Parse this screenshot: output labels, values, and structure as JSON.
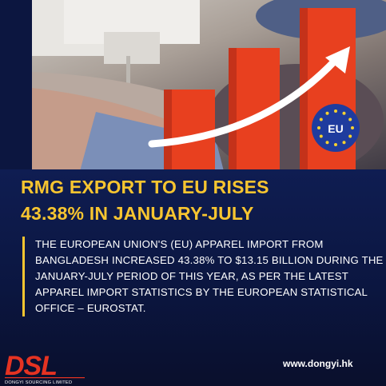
{
  "headline": {
    "line1": "RMG EXPORT TO EU RISES",
    "line2": "43.38% IN JANUARY-JULY"
  },
  "body": {
    "text": "THE EUROPEAN UNION'S (EU) APPAREL IMPORT FROM BANGLADESH INCREASED 43.38% TO $13.15 BILLION DURING THE JANUARY-JULY PERIOD OF THIS YEAR, AS PER THE LATEST APPAREL IMPORT STATISTICS BY THE EUROPEAN STATISTICAL OFFICE – EUROSTAT."
  },
  "eu_badge": {
    "label": "EU"
  },
  "footer": {
    "website": "www.dongyi.hk",
    "logo_text": "DSL",
    "logo_subtext": "DONGYI SOURCING LIMITED"
  },
  "colors": {
    "accent_yellow": "#f7c530",
    "background_navy": "#0c1640",
    "bar_orange": "#e8401f",
    "eu_blue": "#1f3c9e",
    "logo_red": "#e53322"
  },
  "icons": [
    "eu-flag-badge",
    "growth-arrow-icon"
  ]
}
